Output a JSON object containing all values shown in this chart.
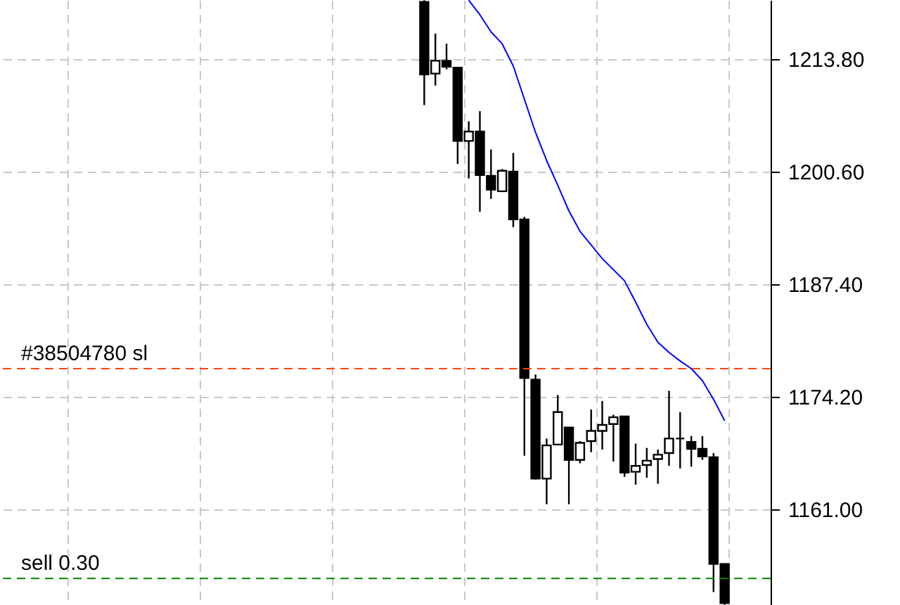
{
  "chart_data": {
    "type": "candlestick",
    "categories": [
      null,
      null,
      null,
      null,
      null,
      null,
      null,
      null,
      null,
      null,
      null,
      null,
      null,
      null,
      null,
      null,
      null,
      null,
      null,
      null,
      null,
      null,
      null,
      null,
      null,
      null,
      null,
      null,
      null,
      null,
      null,
      null,
      null,
      null,
      null,
      null,
      null,
      null,
      null,
      null,
      null,
      null,
      null,
      null,
      null,
      null,
      null,
      null,
      null,
      null,
      null,
      null,
      null,
      null,
      null,
      null,
      null,
      null,
      null,
      null,
      null,
      null,
      null,
      null,
      null,
      null,
      null,
      null
    ],
    "ohlc": [
      null,
      null,
      null,
      null,
      null,
      null,
      null,
      null,
      null,
      null,
      null,
      null,
      null,
      null,
      null,
      null,
      null,
      null,
      null,
      null,
      null,
      null,
      null,
      null,
      null,
      null,
      null,
      null,
      null,
      null,
      null,
      null,
      null,
      null,
      null,
      null,
      null,
      [
        1220.5,
        1220.7,
        1208.4,
        1212.0
      ],
      [
        1212.1,
        1216.8,
        1210.7,
        1213.6
      ],
      [
        1213.6,
        1215.6,
        1212.6,
        1212.9
      ],
      [
        1212.8,
        1212.8,
        1201.5,
        1204.2
      ],
      [
        1204.2,
        1206.5,
        1199.8,
        1205.3
      ],
      [
        1205.3,
        1207.7,
        1195.9,
        1200.2
      ],
      [
        1200.1,
        1203.2,
        1197.4,
        1198.5
      ],
      [
        1198.3,
        1200.9,
        1198.2,
        1200.7
      ],
      [
        1200.6,
        1202.8,
        1194.1,
        1195.0
      ],
      [
        1195.0,
        1195.3,
        1167.3,
        1176.4
      ],
      [
        1176.2,
        1176.8,
        1164.5,
        1164.6
      ],
      [
        1164.6,
        1169.3,
        1161.6,
        1168.5
      ],
      [
        1168.6,
        1174.4,
        1168.5,
        1172.4
      ],
      [
        1170.6,
        1170.6,
        1161.6,
        1166.8
      ],
      [
        1166.8,
        1169.0,
        1166.4,
        1168.8
      ],
      [
        1169.0,
        1172.7,
        1167.7,
        1170.2
      ],
      [
        1170.2,
        1173.7,
        1168.0,
        1170.9
      ],
      [
        1171.0,
        1172.1,
        1166.6,
        1171.8
      ],
      [
        1171.9,
        1171.9,
        1164.8,
        1165.3
      ],
      [
        1165.4,
        1168.7,
        1163.9,
        1166.1
      ],
      [
        1166.2,
        1168.2,
        1164.7,
        1166.7
      ],
      [
        1166.9,
        1168.0,
        1164.0,
        1167.4
      ],
      [
        1167.6,
        1174.9,
        1166.1,
        1169.3
      ],
      [
        1169.3,
        1172.4,
        1165.8,
        1169.3
      ],
      [
        1168.9,
        1169.6,
        1166.0,
        1168.1
      ],
      [
        1168.1,
        1169.6,
        1166.8,
        1167.2
      ],
      [
        1167.1,
        1167.6,
        1151.3,
        1154.6
      ],
      [
        1154.6,
        1154.6,
        1149.8,
        1150.0
      ],
      null,
      null,
      null
    ],
    "series": [
      {
        "type": "line",
        "color": "#0000ff",
        "values": [
          null,
          null,
          null,
          null,
          null,
          null,
          null,
          null,
          null,
          null,
          null,
          null,
          null,
          null,
          null,
          null,
          null,
          null,
          null,
          null,
          null,
          null,
          null,
          null,
          null,
          null,
          null,
          null,
          null,
          null,
          null,
          null,
          null,
          null,
          null,
          null,
          null,
          null,
          null,
          null,
          null,
          1220.7,
          1219.0,
          1217.0,
          1215.6,
          1213.0,
          1209.1,
          1205.2,
          1201.9,
          1199.0,
          1196.0,
          1193.6,
          1192.0,
          1190.4,
          1189.1,
          1187.8,
          1185.3,
          1182.7,
          1180.6,
          1179.4,
          1178.4,
          1177.5,
          1176.1,
          1173.9,
          1171.4,
          null,
          null,
          null
        ]
      }
    ],
    "ylim": [
      1149.78,
      1220.73
    ],
    "yticks": [
      {
        "value": 1161.0,
        "label": "1161.00"
      },
      {
        "value": 1174.2,
        "label": "1174.20"
      },
      {
        "value": 1187.4,
        "label": "1187.40"
      },
      {
        "value": 1200.6,
        "label": "1200.60"
      },
      {
        "value": 1213.8,
        "label": "1213.80"
      }
    ],
    "ref_lines": [
      {
        "axis": "y",
        "value": 1177.5,
        "label": "#38504780 sl",
        "color": "#ff4500",
        "line_style": "dashed"
      },
      {
        "axis": "y",
        "value": 1152.9,
        "label": "sell 0.30",
        "color": "#008000",
        "line_style": "dashed"
      }
    ],
    "grid": true,
    "tick_labels": "y"
  }
}
